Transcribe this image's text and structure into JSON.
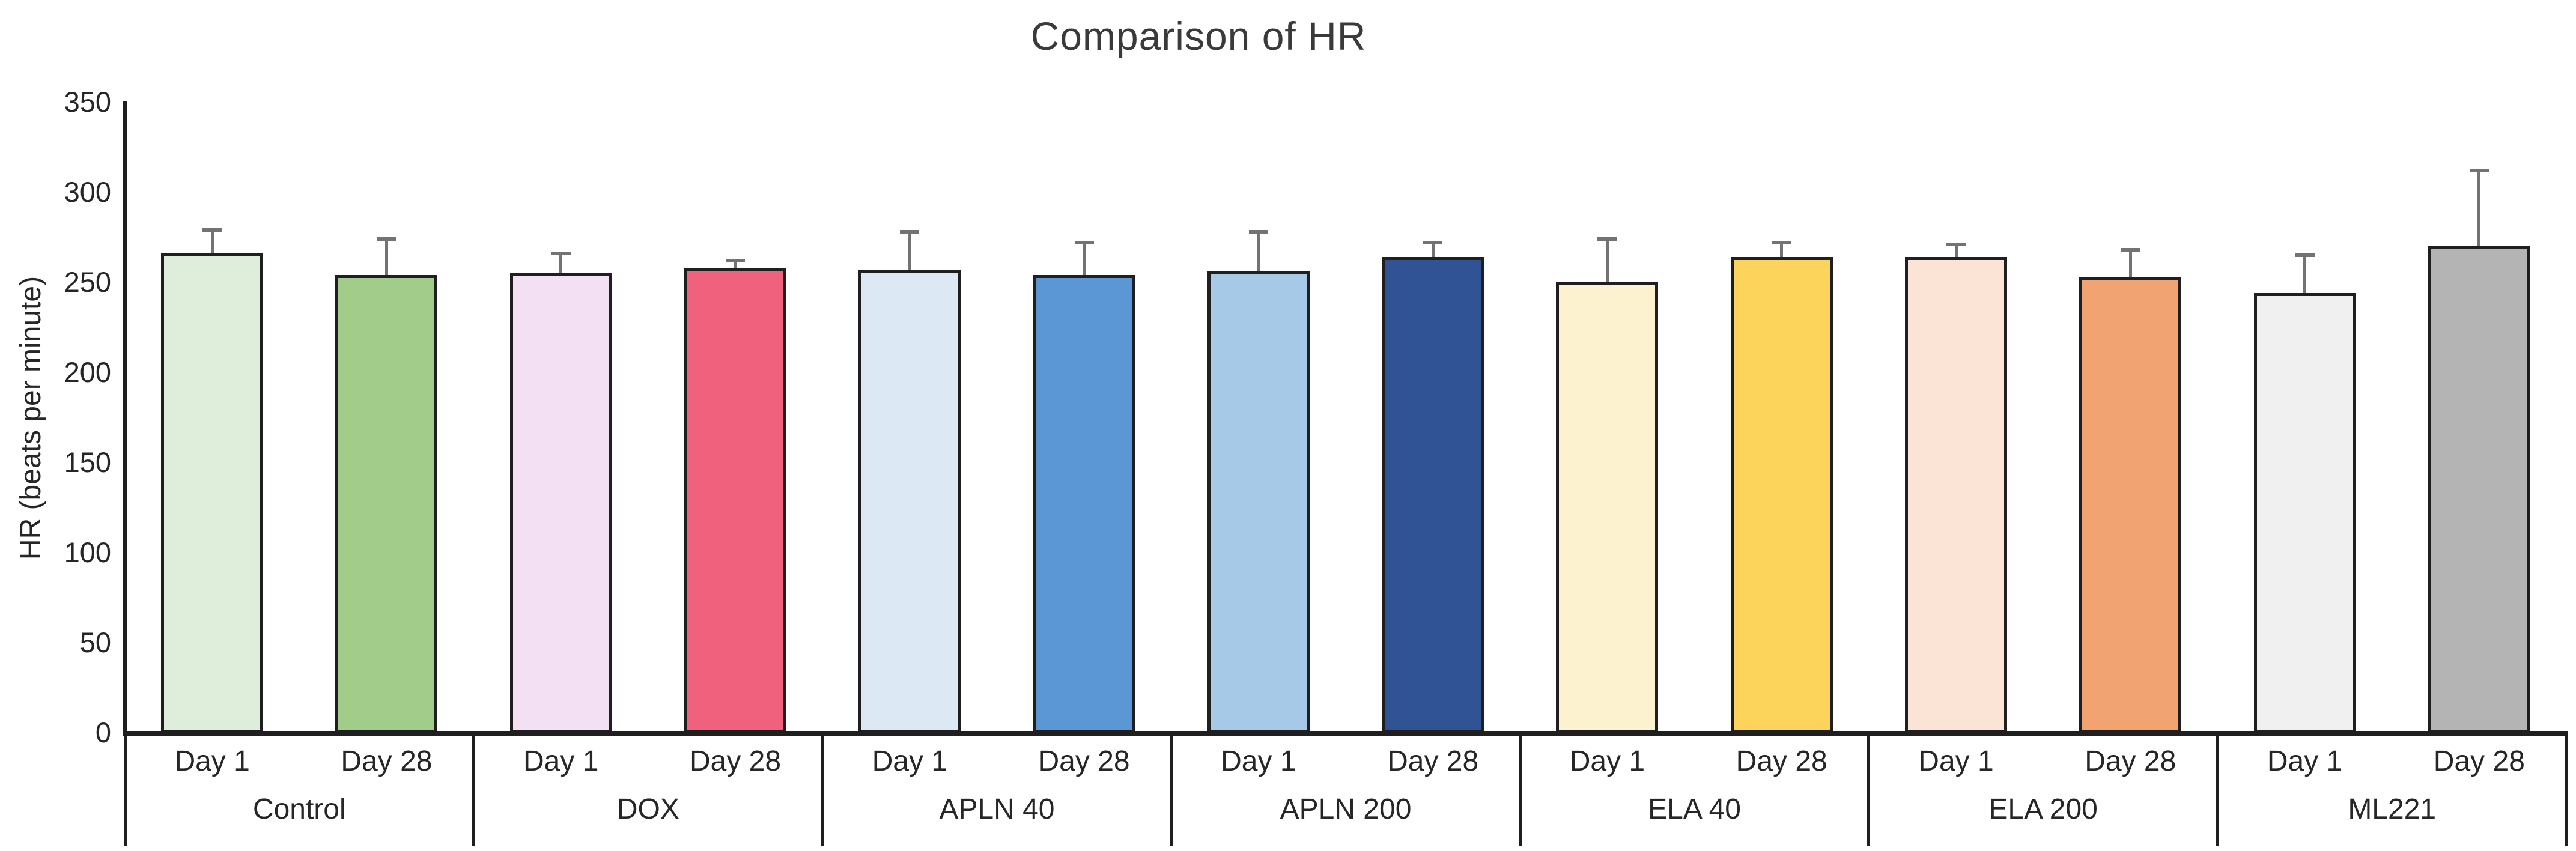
{
  "title": "Comparison of HR",
  "y_axis": {
    "label": "HR (beats per minute)",
    "ticks": [
      0,
      50,
      100,
      150,
      200,
      250,
      300,
      350
    ]
  },
  "chart_data": {
    "type": "bar",
    "title": "Comparison of HR",
    "xlabel": "",
    "ylabel": "HR (beats per minute)",
    "ylim": [
      0,
      350
    ],
    "grid": false,
    "legend": "none",
    "error_bars": "upper-only",
    "categories": [
      "Control",
      "DOX",
      "APLN 40",
      "APLN 200",
      "ELA 40",
      "ELA 200",
      "ML221"
    ],
    "series": [
      {
        "name": "Day 1",
        "values": [
          266,
          255,
          257,
          256,
          250,
          264,
          244
        ],
        "errors": [
          13,
          11,
          21,
          22,
          24,
          7,
          21
        ],
        "colors": [
          "#deeeda",
          "#f3e1f3",
          "#dce8f4",
          "#a6c9e8",
          "#fdf2d0",
          "#fbe4d5",
          "#f0f0f0"
        ]
      },
      {
        "name": "Day 28",
        "values": [
          254,
          258,
          254,
          264,
          264,
          253,
          270
        ],
        "errors": [
          20,
          4,
          18,
          8,
          8,
          15,
          42
        ],
        "colors": [
          "#a2cc8a",
          "#f0617d",
          "#5b97d4",
          "#2f5394",
          "#fcd45c",
          "#f2a372",
          "#b4b4b4"
        ]
      }
    ]
  },
  "colors": {
    "axis": "#1f1f1f",
    "bar_border": "#1f1f1f",
    "error_bar": "#737373",
    "text": "#262626",
    "title_text": "#3a3a3a",
    "background": "#ffffff"
  }
}
